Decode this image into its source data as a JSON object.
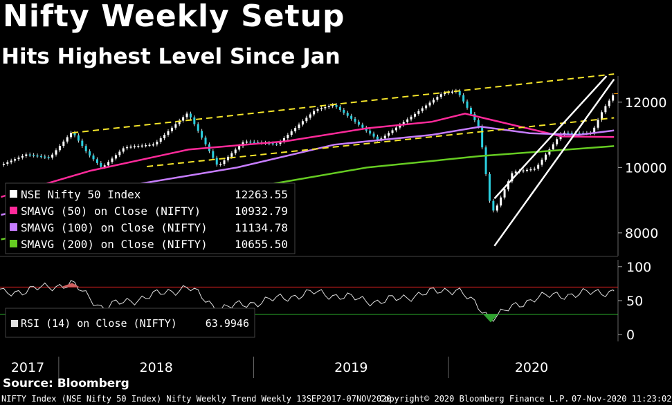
{
  "header": {
    "title": "Nifty Weekly Setup",
    "subtitle": "Hits Highest Level Since Jan"
  },
  "legend": [
    {
      "label": "NSE Nifty 50 Index",
      "value": "12263.55",
      "color": "#ffffff"
    },
    {
      "label": "SMAVG (50)  on Close (NIFTY)",
      "value": "10932.79",
      "color": "#ff2a9a"
    },
    {
      "label": "SMAVG (100)  on Close (NIFTY)",
      "value": "11134.78",
      "color": "#c77dff"
    },
    {
      "label": "SMAVG (200)  on Close (NIFTY)",
      "value": "10655.50",
      "color": "#66cc22"
    }
  ],
  "rsi_legend": {
    "label": "RSI (14)  on Close (NIFTY)",
    "value": "63.9946",
    "color": "#e0e0e0"
  },
  "source": "Source: Bloomberg",
  "footer": {
    "left": "NIFTY Index (NSE Nifty 50 Index) Nifty Weekly Trend  Weekly 13SEP2017-07NOV2020",
    "center": "Copyright© 2020 Bloomberg Finance L.P.",
    "right": "07-Nov-2020 11:23:02"
  },
  "chart_data": [
    {
      "type": "line",
      "ylim": [
        7300,
        12800
      ],
      "yticks": [
        8000,
        10000,
        12000
      ],
      "ytick_labels": [
        "8000",
        "10000",
        "12000"
      ],
      "xticks": [
        "2017",
        "2018",
        "2019",
        "2020"
      ],
      "x_start": "2017-09-13",
      "x_end": "2020-11-07",
      "series": [
        {
          "name": "NSE Nifty 50 Index",
          "color": "#ffffff",
          "points": [
            [
              "2017-09-15",
              10080
            ],
            [
              "2017-11-01",
              10400
            ],
            [
              "2017-12-15",
              10300
            ],
            [
              "2018-01-26",
              11100
            ],
            [
              "2018-02-23",
              10450
            ],
            [
              "2018-03-23",
              9990
            ],
            [
              "2018-05-04",
              10620
            ],
            [
              "2018-06-29",
              10710
            ],
            [
              "2018-08-31",
              11680
            ],
            [
              "2018-10-26",
              10030
            ],
            [
              "2018-12-14",
              10800
            ],
            [
              "2019-02-15",
              10720
            ],
            [
              "2019-04-26",
              11760
            ],
            [
              "2019-05-31",
              11920
            ],
            [
              "2019-08-23",
              10830
            ],
            [
              "2019-10-25",
              11580
            ],
            [
              "2019-12-20",
              12270
            ],
            [
              "2020-01-17",
              12350
            ],
            [
              "2020-02-28",
              11200
            ],
            [
              "2020-03-20",
              8745
            ],
            [
              "2020-03-27",
              8660
            ],
            [
              "2020-04-30",
              9860
            ],
            [
              "2020-06-12",
              9970
            ],
            [
              "2020-07-31",
              11070
            ],
            [
              "2020-09-25",
              11050
            ],
            [
              "2020-10-16",
              11760
            ],
            [
              "2020-11-06",
              12263
            ]
          ]
        },
        {
          "name": "SMAVG (50)  on Close (NIFTY)",
          "color": "#ff2a9a",
          "points": [
            [
              "2017-09-15",
              9100
            ],
            [
              "2018-03-01",
              9900
            ],
            [
              "2018-09-01",
              10550
            ],
            [
              "2019-03-01",
              10800
            ],
            [
              "2019-08-01",
              11200
            ],
            [
              "2019-12-01",
              11400
            ],
            [
              "2020-02-01",
              11650
            ],
            [
              "2020-05-01",
              11300
            ],
            [
              "2020-08-01",
              10950
            ],
            [
              "2020-11-06",
              10933
            ]
          ]
        },
        {
          "name": "SMAVG (100)  on Close (NIFTY)",
          "color": "#c77dff",
          "points": [
            [
              "2017-09-15",
              8550
            ],
            [
              "2018-06-01",
              9500
            ],
            [
              "2018-12-01",
              10000
            ],
            [
              "2019-06-01",
              10700
            ],
            [
              "2019-12-01",
              11000
            ],
            [
              "2020-03-01",
              11250
            ],
            [
              "2020-06-01",
              11050
            ],
            [
              "2020-09-01",
              11000
            ],
            [
              "2020-11-06",
              11135
            ]
          ]
        },
        {
          "name": "SMAVG (200)  on Close (NIFTY)",
          "color": "#66cc22",
          "points": [
            [
              "2017-09-15",
              7800
            ],
            [
              "2018-06-01",
              8600
            ],
            [
              "2019-01-01",
              9400
            ],
            [
              "2019-08-01",
              10000
            ],
            [
              "2020-03-01",
              10350
            ],
            [
              "2020-07-01",
              10500
            ],
            [
              "2020-11-06",
              10655
            ]
          ]
        }
      ]
    },
    {
      "type": "line",
      "ylim": [
        -10,
        110
      ],
      "yticks": [
        0,
        50,
        100
      ],
      "ytick_labels": [
        "0",
        "50",
        "100"
      ],
      "reference_lines": [
        70,
        30
      ],
      "series": [
        {
          "name": "RSI (14)  on Close (NIFTY)",
          "color": "#e0e0e0",
          "points": [
            [
              "2017-09-15",
              60
            ],
            [
              "2018-01-26",
              75
            ],
            [
              "2018-03-23",
              40
            ],
            [
              "2018-08-31",
              70
            ],
            [
              "2018-10-26",
              38
            ],
            [
              "2019-04-26",
              62
            ],
            [
              "2019-08-23",
              48
            ],
            [
              "2019-12-20",
              65
            ],
            [
              "2020-01-17",
              67
            ],
            [
              "2020-03-20",
              25
            ],
            [
              "2020-06-12",
              55
            ],
            [
              "2020-08-31",
              60
            ],
            [
              "2020-11-06",
              64
            ]
          ]
        }
      ]
    }
  ]
}
